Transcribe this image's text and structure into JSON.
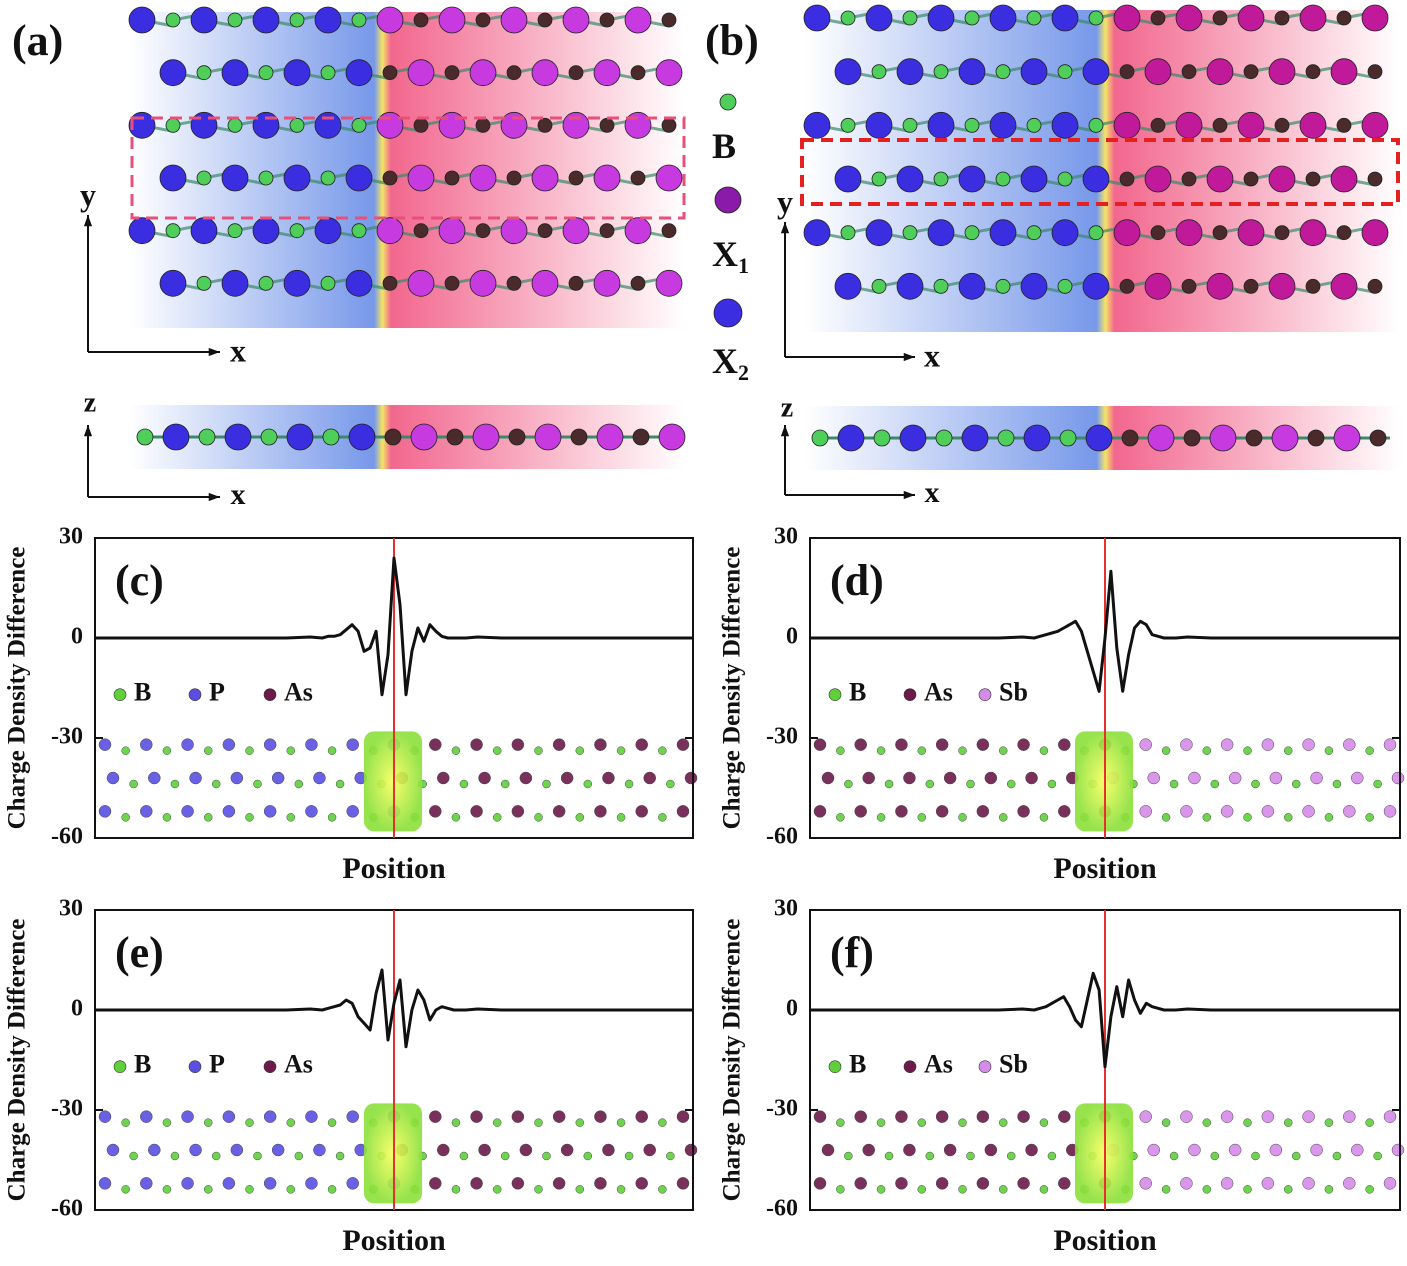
{
  "panels": [
    {
      "label": "(a)",
      "axes": {
        "x": "x",
        "y": "y",
        "z": "z"
      }
    },
    {
      "label": "(b)",
      "axes": {
        "x": "x",
        "y": "y",
        "z": "z"
      }
    }
  ],
  "element_legend": [
    {
      "name": "B"
    },
    {
      "name": "X",
      "sub": "1"
    },
    {
      "name": "X",
      "sub": "2"
    }
  ],
  "chart_data": [
    {
      "type": "line",
      "label": "(c)",
      "ylabel": "Charge Density Difference",
      "xlabel": "Position",
      "xlim": [
        0,
        100
      ],
      "ylim": [
        -60,
        30
      ],
      "yticks": [
        -60,
        -30,
        0,
        30
      ],
      "vline": 50,
      "vline_color": "#e53030",
      "x": [
        0,
        4,
        8,
        12,
        16,
        20,
        24,
        28,
        32,
        36,
        38,
        39,
        40,
        41,
        42,
        43,
        44,
        45,
        46,
        47,
        48,
        49,
        50,
        51,
        52,
        53,
        54,
        55,
        56,
        57,
        58,
        59,
        60,
        61,
        62,
        64,
        68,
        72,
        76,
        80,
        84,
        88,
        92,
        96,
        100
      ],
      "series": [
        {
          "color": "#111111",
          "values": [
            0,
            0,
            0,
            0,
            0,
            0,
            0,
            0,
            0,
            0.3,
            0,
            0.5,
            0.5,
            1,
            2.5,
            4,
            2,
            -4,
            -3,
            2,
            -17,
            -5,
            24,
            10,
            -17,
            -4,
            3,
            -1,
            4,
            2,
            0.5,
            0,
            0,
            0,
            0,
            0.3,
            0,
            0,
            0,
            0,
            0,
            0,
            0,
            0,
            0
          ]
        }
      ],
      "atom_legend": [
        {
          "name": "B",
          "color": "#5fcf3a"
        },
        {
          "name": "P",
          "color": "#5a4fe0"
        },
        {
          "name": "As",
          "color": "#6b1a4a"
        }
      ]
    },
    {
      "type": "line",
      "label": "(d)",
      "ylabel": "Charge Density Difference",
      "xlabel": "Position",
      "xlim": [
        0,
        100
      ],
      "ylim": [
        -60,
        30
      ],
      "yticks": [
        -60,
        -30,
        0,
        30
      ],
      "vline": 50,
      "vline_color": "#e53030",
      "x": [
        0,
        4,
        8,
        12,
        16,
        20,
        24,
        28,
        32,
        36,
        38,
        39,
        40,
        41,
        42,
        43,
        44,
        45,
        46,
        47,
        48,
        49,
        50,
        51,
        52,
        53,
        54,
        55,
        56,
        57,
        58,
        59,
        60,
        61,
        62,
        64,
        68,
        72,
        76,
        80,
        84,
        88,
        92,
        96,
        100
      ],
      "series": [
        {
          "color": "#111111",
          "values": [
            0,
            0,
            0,
            0,
            0,
            0,
            0,
            0,
            0,
            0.3,
            0,
            0.5,
            1,
            1.5,
            2,
            3,
            4,
            5,
            2,
            -4,
            -10,
            -16,
            0,
            20,
            -3,
            -16,
            -5,
            3,
            5,
            4,
            1,
            0.5,
            0,
            0,
            0,
            0.3,
            0,
            0,
            0,
            0,
            0,
            0,
            0,
            0,
            0
          ]
        }
      ],
      "atom_legend": [
        {
          "name": "B",
          "color": "#5fcf3a"
        },
        {
          "name": "As",
          "color": "#6b1a4a"
        },
        {
          "name": "Sb",
          "color": "#d58be8"
        }
      ]
    },
    {
      "type": "line",
      "label": "(e)",
      "ylabel": "Charge Density Difference",
      "xlabel": "Position",
      "xlim": [
        0,
        100
      ],
      "ylim": [
        -60,
        30
      ],
      "yticks": [
        -60,
        -30,
        0,
        30
      ],
      "vline": 50,
      "vline_color": "#e53030",
      "x": [
        0,
        4,
        8,
        12,
        16,
        20,
        24,
        28,
        32,
        36,
        38,
        39,
        40,
        41,
        42,
        43,
        44,
        45,
        46,
        47,
        48,
        49,
        50,
        51,
        52,
        53,
        54,
        55,
        56,
        57,
        58,
        59,
        60,
        61,
        62,
        64,
        68,
        72,
        76,
        80,
        84,
        88,
        92,
        96,
        100
      ],
      "series": [
        {
          "color": "#111111",
          "values": [
            0,
            0,
            0,
            0,
            0,
            0,
            0,
            0,
            0,
            0.3,
            0,
            0.5,
            1,
            1.5,
            3,
            2,
            -2,
            -4,
            -6,
            5,
            12,
            -9,
            2,
            9,
            -11,
            0,
            6,
            3,
            -3,
            0,
            1,
            0.5,
            0,
            0,
            0,
            0.3,
            0,
            0,
            0,
            0,
            0,
            0,
            0,
            0,
            0
          ]
        }
      ],
      "atom_legend": [
        {
          "name": "B",
          "color": "#5fcf3a"
        },
        {
          "name": "P",
          "color": "#5a4fe0"
        },
        {
          "name": "As",
          "color": "#6b1a4a"
        }
      ]
    },
    {
      "type": "line",
      "label": "(f)",
      "ylabel": "Charge Density Difference",
      "xlabel": "Position",
      "xlim": [
        0,
        100
      ],
      "ylim": [
        -60,
        30
      ],
      "yticks": [
        -60,
        -30,
        0,
        30
      ],
      "vline": 50,
      "vline_color": "#e53030",
      "x": [
        0,
        4,
        8,
        12,
        16,
        20,
        24,
        28,
        32,
        36,
        38,
        39,
        40,
        41,
        42,
        43,
        44,
        45,
        46,
        47,
        48,
        49,
        50,
        51,
        52,
        53,
        54,
        55,
        56,
        57,
        58,
        59,
        60,
        61,
        62,
        64,
        68,
        72,
        76,
        80,
        84,
        88,
        92,
        96,
        100
      ],
      "series": [
        {
          "color": "#111111",
          "values": [
            0,
            0,
            0,
            0,
            0,
            0,
            0,
            0,
            0,
            0.3,
            0,
            0.5,
            1,
            2,
            3,
            4,
            1,
            -3,
            -5,
            3,
            11,
            6,
            -17,
            -2,
            7,
            -2,
            9,
            3,
            -1,
            2,
            1,
            0.5,
            0,
            0,
            0,
            0.3,
            0,
            0,
            0,
            0,
            0,
            0,
            0,
            0,
            0
          ]
        }
      ],
      "atom_legend": [
        {
          "name": "B",
          "color": "#5fcf3a"
        },
        {
          "name": "As",
          "color": "#6b1a4a"
        },
        {
          "name": "Sb",
          "color": "#d58be8"
        }
      ]
    }
  ]
}
